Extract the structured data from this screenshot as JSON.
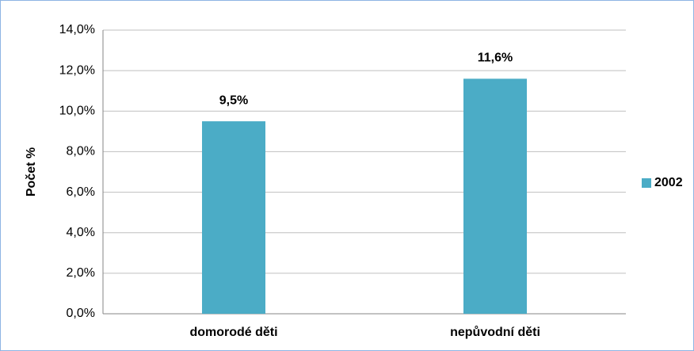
{
  "chart_data": {
    "type": "bar",
    "y_axis_label": "Počet %",
    "categories": [
      "domorodé děti",
      "nepůvodní děti"
    ],
    "series": [
      {
        "name": "2002",
        "color": "#4bacc6",
        "values": [
          9.5,
          11.6
        ],
        "value_labels": [
          "9,5%",
          "11,6%"
        ]
      }
    ],
    "ylim": [
      0,
      14
    ],
    "yticks": [
      {
        "value": 0,
        "label": "0,0%"
      },
      {
        "value": 2,
        "label": "2,0%"
      },
      {
        "value": 4,
        "label": "4,0%"
      },
      {
        "value": 6,
        "label": "6,0%"
      },
      {
        "value": 8,
        "label": "8,0%"
      },
      {
        "value": 10,
        "label": "10,0%"
      },
      {
        "value": 12,
        "label": "12,0%"
      },
      {
        "value": 14,
        "label": "14,0%"
      }
    ],
    "grid": true,
    "legend": "right"
  }
}
